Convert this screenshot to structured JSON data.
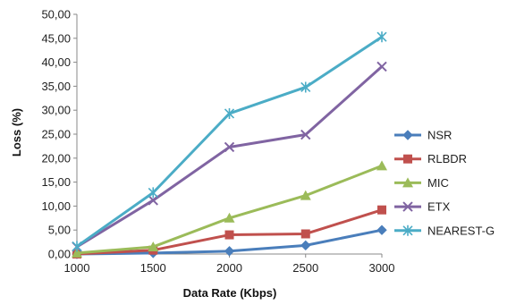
{
  "chart_data": {
    "type": "line",
    "title": "",
    "xlabel": "Data Rate (Kbps)",
    "ylabel": "Loss (%)",
    "x": [
      1000,
      1500,
      2000,
      2500,
      3000
    ],
    "x_tick_labels": [
      "1000",
      "1500",
      "2000",
      "2500",
      "3000"
    ],
    "ylim": [
      0,
      50
    ],
    "y_tick_labels": [
      "0,00",
      "5,00",
      "10,00",
      "15,00",
      "20,00",
      "25,00",
      "30,00",
      "35,00",
      "40,00",
      "45,00",
      "50,00"
    ],
    "grid": false,
    "legend_position": "right",
    "series": [
      {
        "name": "NSR",
        "color": "#4a7ebb",
        "marker": "diamond",
        "values": [
          0.0,
          0.2,
          0.6,
          1.8,
          5.0
        ]
      },
      {
        "name": "RLBDR",
        "color": "#c0504d",
        "marker": "square",
        "values": [
          0.0,
          0.8,
          4.0,
          4.2,
          9.2
        ]
      },
      {
        "name": "MIC",
        "color": "#9bbb59",
        "marker": "triangle",
        "values": [
          0.2,
          1.5,
          7.5,
          12.2,
          18.4
        ]
      },
      {
        "name": "ETX",
        "color": "#8064a2",
        "marker": "x",
        "values": [
          1.5,
          11.2,
          22.3,
          24.9,
          39.1
        ]
      },
      {
        "name": "NEAREST-G",
        "color": "#4bacc6",
        "marker": "asterisk",
        "values": [
          1.6,
          12.8,
          29.3,
          34.8,
          45.3
        ]
      }
    ]
  }
}
